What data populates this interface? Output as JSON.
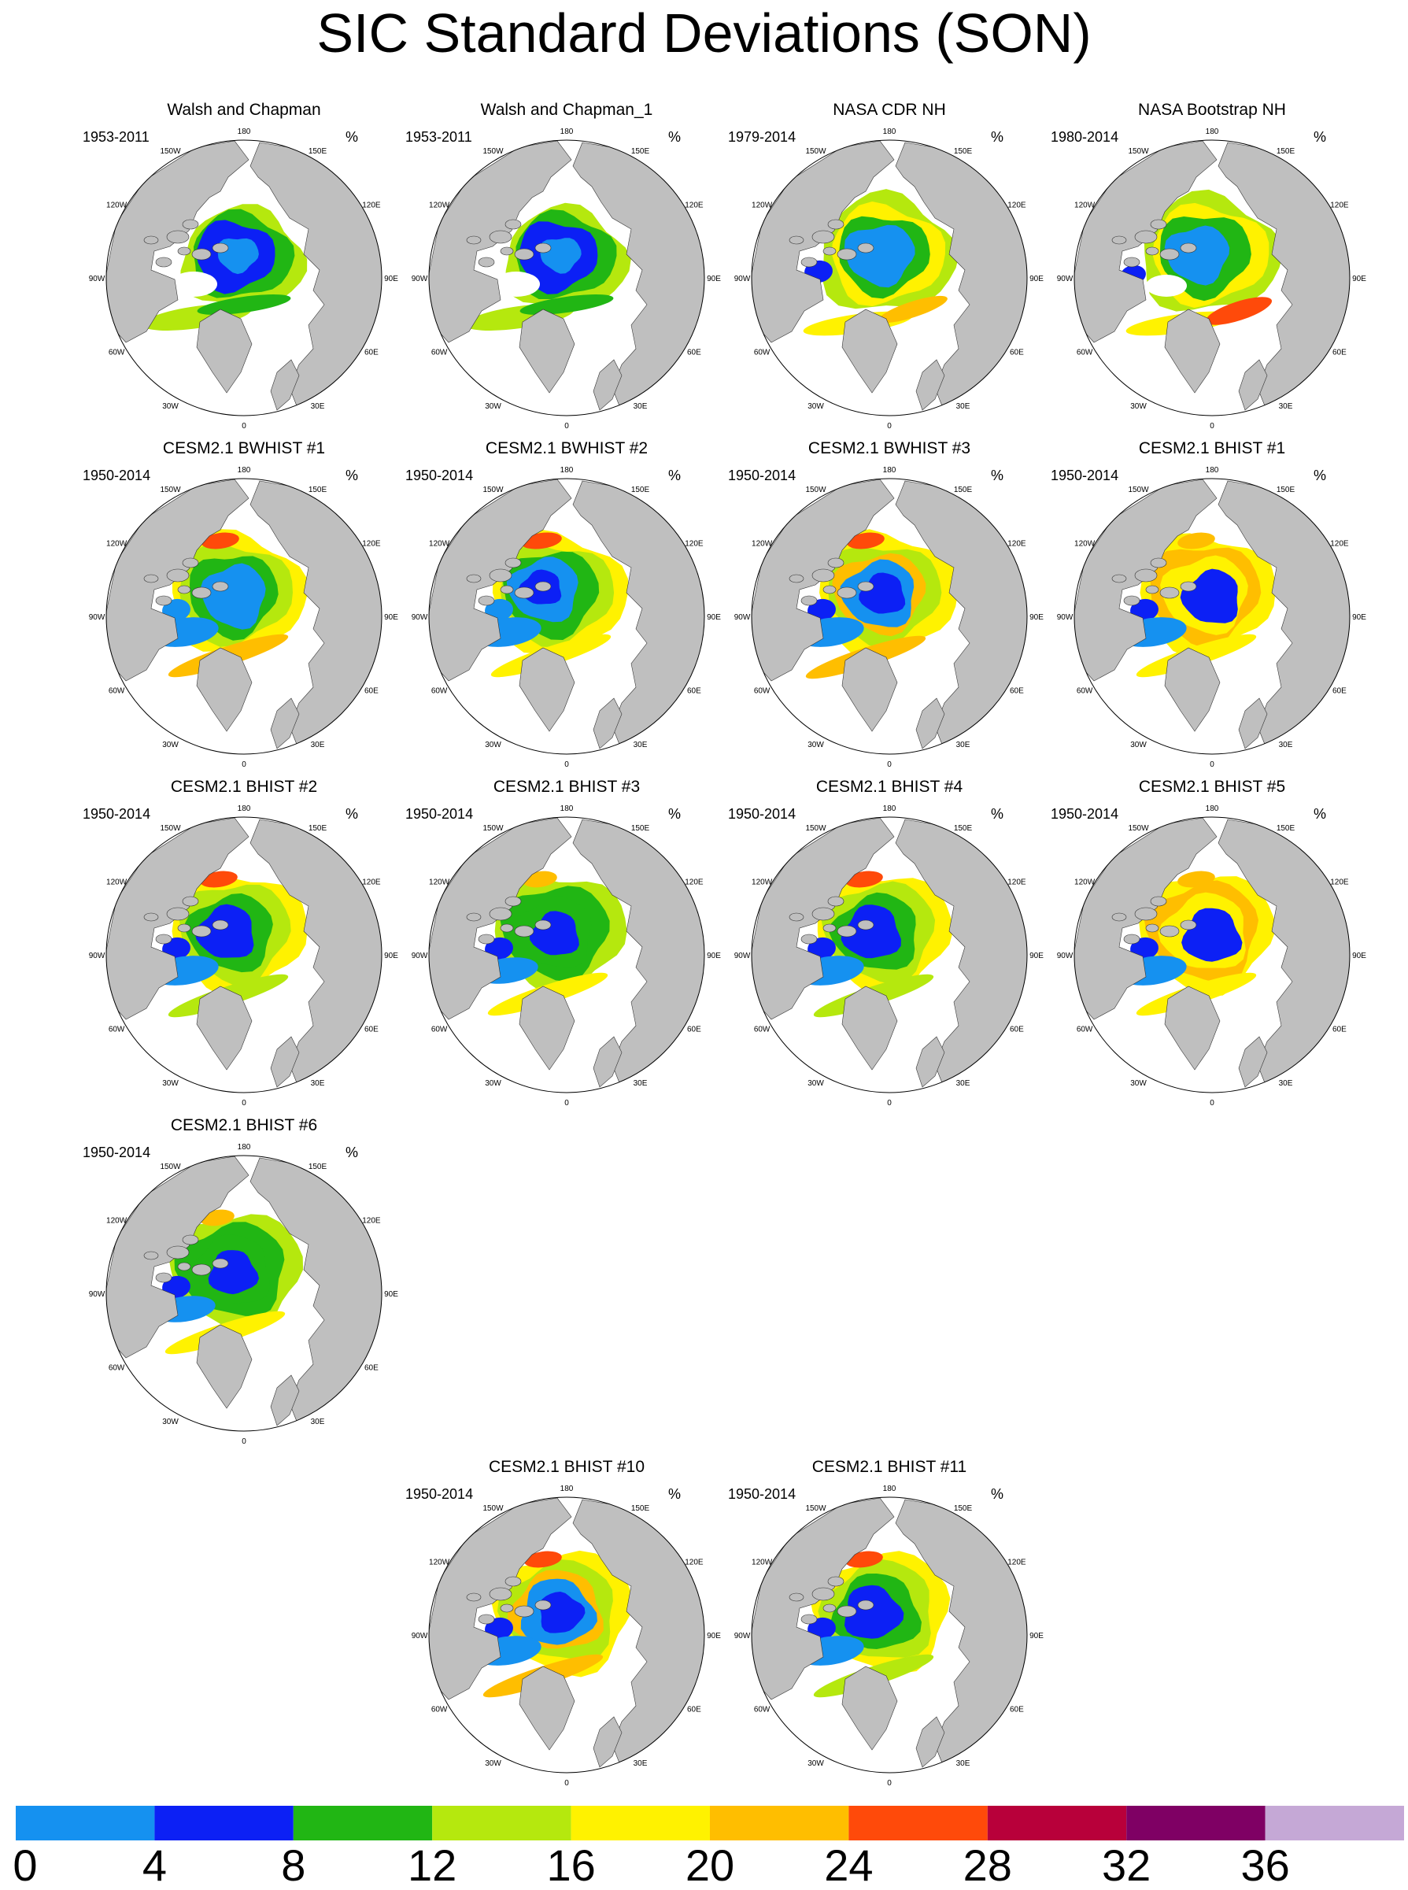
{
  "title": "SIC Standard Deviations (SON)",
  "unit": "%",
  "longitude_labels": [
    "180",
    "150E",
    "120E",
    "90E",
    "60E",
    "30E",
    "0",
    "30W",
    "60W",
    "90W",
    "120W",
    "150W"
  ],
  "panels": [
    {
      "title": "Walsh and Chapman",
      "years": "1953-2011",
      "variant": "obs1"
    },
    {
      "title": "Walsh and Chapman_1",
      "years": "1953-2011",
      "variant": "obs1"
    },
    {
      "title": "NASA CDR NH",
      "years": "1979-2014",
      "variant": "obs2"
    },
    {
      "title": "NASA Bootstrap NH",
      "years": "1980-2014",
      "variant": "obs3"
    },
    {
      "title": "CESM2.1 BWHIST #1",
      "years": "1950-2014",
      "variant": "m1"
    },
    {
      "title": "CESM2.1 BWHIST #2",
      "years": "1950-2014",
      "variant": "m2"
    },
    {
      "title": "CESM2.1 BWHIST #3",
      "years": "1950-2014",
      "variant": "m3"
    },
    {
      "title": "CESM2.1 BHIST #1",
      "years": "1950-2014",
      "variant": "m4"
    },
    {
      "title": "CESM2.1 BHIST #2",
      "years": "1950-2014",
      "variant": "m5"
    },
    {
      "title": "CESM2.1 BHIST #3",
      "years": "1950-2014",
      "variant": "m6"
    },
    {
      "title": "CESM2.1 BHIST #4",
      "years": "1950-2014",
      "variant": "m5"
    },
    {
      "title": "CESM2.1 BHIST #5",
      "years": "1950-2014",
      "variant": "m4"
    },
    {
      "title": "CESM2.1 BHIST #6",
      "years": "1950-2014",
      "variant": "m6"
    },
    {
      "title": "CESM2.1 BHIST #10",
      "years": "1950-2014",
      "variant": "m3"
    },
    {
      "title": "CESM2.1 BHIST #11",
      "years": "1950-2014",
      "variant": "m5"
    }
  ],
  "colorbar": {
    "colors": [
      "#1591f0",
      "#0c20f5",
      "#21b614",
      "#b5e80e",
      "#fff200",
      "#ffbe00",
      "#ff4a0a",
      "#b8003a",
      "#7f0064",
      "#c5a8d6"
    ],
    "labels": [
      "0",
      "4",
      "8",
      "12",
      "16",
      "20",
      "24",
      "28",
      "32",
      "36"
    ]
  },
  "palette": {
    "land": "#bfbfbf",
    "ocean": "#ffffff"
  }
}
